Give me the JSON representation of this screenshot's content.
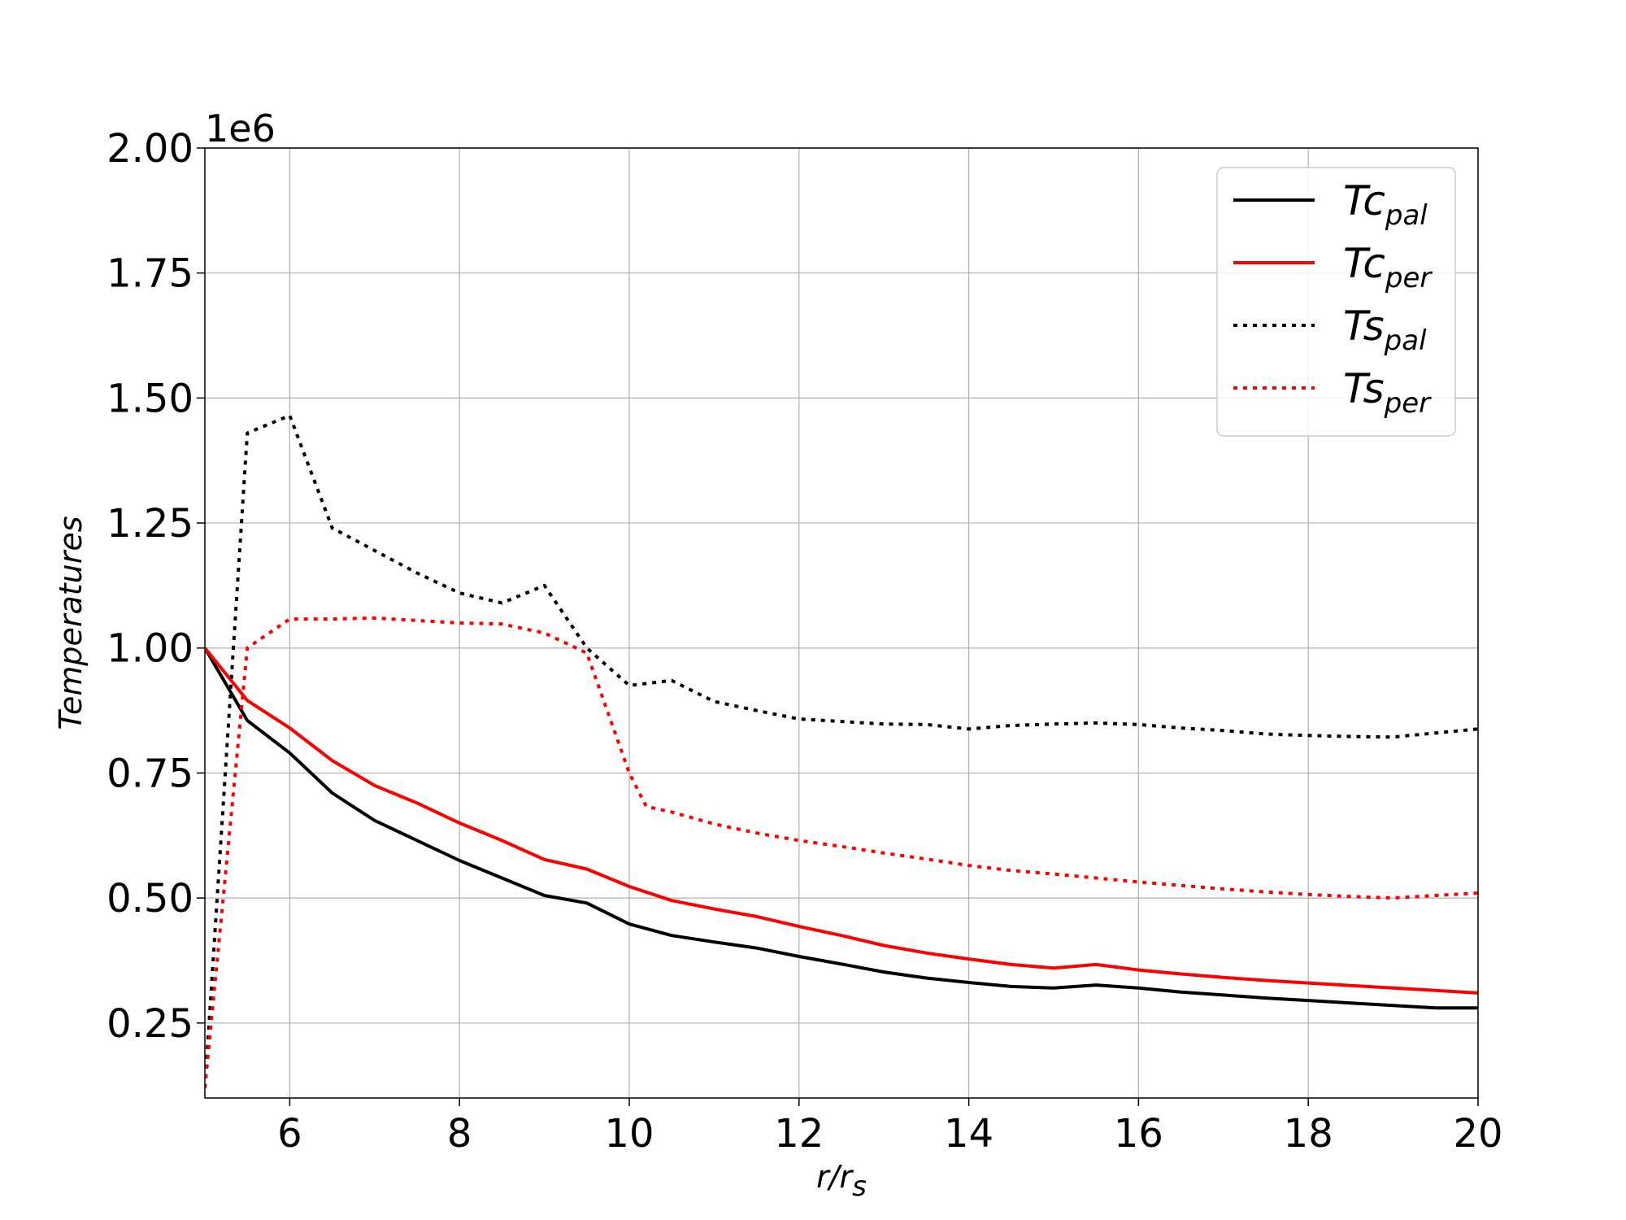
{
  "chart_data": {
    "type": "line",
    "xlabel": {
      "main": "r/r",
      "sub": "s"
    },
    "ylabel": "Temperatures",
    "y_offset_label": "1e6",
    "xlim": [
      5,
      20
    ],
    "ylim": [
      0.1,
      2.0
    ],
    "y_scale_factor": 1000000,
    "x_ticks": [
      6,
      8,
      10,
      12,
      14,
      16,
      18,
      20
    ],
    "x_tick_labels": [
      "6",
      "8",
      "10",
      "12",
      "14",
      "16",
      "18",
      "20"
    ],
    "y_ticks": [
      0.25,
      0.5,
      0.75,
      1.0,
      1.25,
      1.5,
      1.75,
      2.0
    ],
    "y_tick_labels": [
      "0.25",
      "0.50",
      "0.75",
      "1.00",
      "1.25",
      "1.50",
      "1.75",
      "2.00"
    ],
    "grid": true,
    "legend_position": "top-right",
    "series": [
      {
        "name": "Tc",
        "name_sub": "pal",
        "color": "#000000",
        "dash": "solid",
        "x": [
          5.0,
          5.5,
          6.0,
          6.5,
          7.0,
          7.5,
          8.0,
          8.5,
          9.0,
          9.5,
          10.0,
          10.5,
          11.0,
          11.5,
          12.0,
          12.5,
          13.0,
          13.5,
          14.0,
          14.5,
          15.0,
          15.5,
          16.0,
          16.5,
          17.0,
          17.5,
          18.0,
          18.5,
          19.0,
          19.5,
          20.0
        ],
        "y": [
          1.0,
          0.855,
          0.79,
          0.71,
          0.655,
          0.615,
          0.575,
          0.54,
          0.505,
          0.49,
          0.448,
          0.425,
          0.412,
          0.4,
          0.383,
          0.368,
          0.352,
          0.34,
          0.331,
          0.323,
          0.32,
          0.326,
          0.32,
          0.312,
          0.306,
          0.3,
          0.295,
          0.29,
          0.285,
          0.28,
          0.28
        ]
      },
      {
        "name": "Tc",
        "name_sub": "per",
        "color": "#ff0000",
        "dash": "solid",
        "x": [
          5.0,
          5.5,
          6.0,
          6.5,
          7.0,
          7.5,
          8.0,
          8.5,
          9.0,
          9.5,
          10.0,
          10.5,
          11.0,
          11.5,
          12.0,
          12.5,
          13.0,
          13.5,
          14.0,
          14.5,
          15.0,
          15.5,
          16.0,
          16.5,
          17.0,
          17.5,
          18.0,
          18.5,
          19.0,
          19.5,
          20.0
        ],
        "y": [
          1.0,
          0.895,
          0.84,
          0.775,
          0.725,
          0.69,
          0.65,
          0.615,
          0.577,
          0.558,
          0.523,
          0.495,
          0.478,
          0.463,
          0.443,
          0.425,
          0.405,
          0.39,
          0.378,
          0.367,
          0.36,
          0.367,
          0.356,
          0.348,
          0.341,
          0.335,
          0.33,
          0.325,
          0.32,
          0.315,
          0.31
        ]
      },
      {
        "name": "Ts",
        "name_sub": "pal",
        "color": "#000000",
        "dash": "dotted",
        "x": [
          5.0,
          5.5,
          6.0,
          6.5,
          7.0,
          7.5,
          8.0,
          8.5,
          9.0,
          9.5,
          10.0,
          10.5,
          11.0,
          11.5,
          12.0,
          12.5,
          13.0,
          13.5,
          14.0,
          14.5,
          15.0,
          15.5,
          16.0,
          16.5,
          17.0,
          17.5,
          18.0,
          18.5,
          19.0,
          19.5,
          20.0
        ],
        "y": [
          0.12,
          1.43,
          1.465,
          1.24,
          1.195,
          1.15,
          1.11,
          1.09,
          1.125,
          1.0,
          0.925,
          0.935,
          0.893,
          0.875,
          0.858,
          0.853,
          0.848,
          0.847,
          0.838,
          0.845,
          0.848,
          0.85,
          0.847,
          0.84,
          0.835,
          0.828,
          0.825,
          0.823,
          0.822,
          0.83,
          0.838
        ]
      },
      {
        "name": "Ts",
        "name_sub": "per",
        "color": "#ff0000",
        "dash": "dotted",
        "x": [
          5.0,
          5.5,
          6.0,
          6.5,
          7.0,
          7.5,
          8.0,
          8.5,
          9.0,
          9.5,
          10.0,
          10.2,
          10.5,
          11.0,
          11.5,
          12.0,
          12.5,
          13.0,
          13.5,
          14.0,
          14.5,
          15.0,
          15.5,
          16.0,
          16.5,
          17.0,
          17.5,
          18.0,
          18.5,
          19.0,
          19.5,
          20.0
        ],
        "y": [
          0.12,
          1.0,
          1.058,
          1.058,
          1.06,
          1.055,
          1.05,
          1.048,
          1.03,
          0.99,
          0.75,
          0.683,
          0.672,
          0.648,
          0.63,
          0.615,
          0.603,
          0.59,
          0.578,
          0.565,
          0.555,
          0.548,
          0.54,
          0.532,
          0.525,
          0.518,
          0.512,
          0.507,
          0.503,
          0.5,
          0.505,
          0.51
        ]
      }
    ]
  }
}
